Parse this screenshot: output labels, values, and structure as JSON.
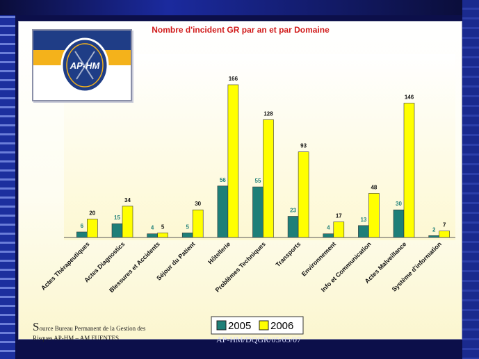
{
  "page": {
    "source_initial": "S",
    "source_line1": "ource Bureau Permanent de la Gestion des",
    "source_line2": "Risques AP-HM – AM FUENTES",
    "footer_ref": "AP-HM/DQGR/05/05/07",
    "logo_text": "AP-HM"
  },
  "chart_data": {
    "type": "bar",
    "title": "Nombre d'incident GR par an et par Domaine",
    "categories": [
      "Actes Thérapeutiques",
      "Actes Diagnostics",
      "Blessures et Accidents",
      "Séjour du Patient",
      "Hôtellerie",
      "Problèmes Techniques",
      "Transports",
      "Environnement",
      "Info et Communication",
      "Actes Malveillance",
      "Système d'information"
    ],
    "series": [
      {
        "name": "2005",
        "values": [
          6,
          15,
          4,
          5,
          56,
          55,
          23,
          4,
          13,
          30,
          2
        ],
        "color": "#1e7f78"
      },
      {
        "name": "2006",
        "values": [
          20,
          34,
          5,
          30,
          166,
          128,
          93,
          17,
          48,
          146,
          7
        ],
        "color": "#ffff00"
      }
    ],
    "ylim": [
      0,
      180
    ],
    "grid": false,
    "legend": "bottom-center"
  }
}
